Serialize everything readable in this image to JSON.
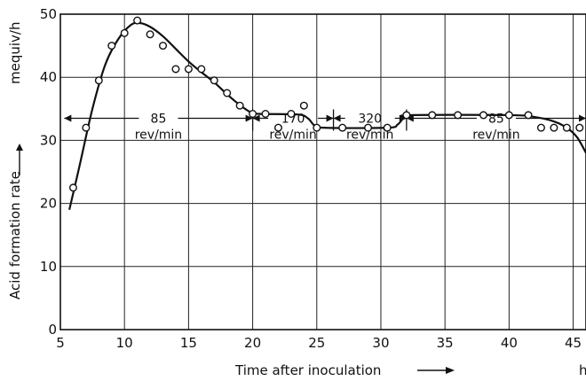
{
  "chart_data": {
    "type": "scatter",
    "xlabel": "Time after inoculation",
    "xunit": "h",
    "ylabel": "Acid formation rate",
    "yunit": "mequiv/h",
    "xlim": [
      5,
      46
    ],
    "ylim": [
      0,
      50
    ],
    "xticks": [
      {
        "value": 5,
        "label": "5"
      },
      {
        "value": 10,
        "label": "10"
      },
      {
        "value": 15,
        "label": "15"
      },
      {
        "value": 20,
        "label": "20"
      },
      {
        "value": 25,
        "label": "25"
      },
      {
        "value": 30,
        "label": "30"
      },
      {
        "value": 35,
        "label": "35"
      },
      {
        "value": 40,
        "label": "40"
      },
      {
        "value": 45,
        "label": "45"
      }
    ],
    "yticks": [
      {
        "value": 0,
        "label": "0"
      },
      {
        "value": 10,
        "label": "10"
      },
      {
        "value": 20,
        "label": "20"
      },
      {
        "value": 30,
        "label": "30"
      },
      {
        "value": 40,
        "label": "40"
      },
      {
        "value": 50,
        "label": "50"
      }
    ],
    "grid": true,
    "points": [
      {
        "x": 6,
        "y": 22.5
      },
      {
        "x": 7,
        "y": 32
      },
      {
        "x": 8,
        "y": 39.5
      },
      {
        "x": 9,
        "y": 45
      },
      {
        "x": 10,
        "y": 47
      },
      {
        "x": 11,
        "y": 49
      },
      {
        "x": 12,
        "y": 46.8
      },
      {
        "x": 13,
        "y": 45
      },
      {
        "x": 14,
        "y": 41.3
      },
      {
        "x": 15,
        "y": 41.3
      },
      {
        "x": 16,
        "y": 41.3
      },
      {
        "x": 17,
        "y": 39.5
      },
      {
        "x": 18,
        "y": 37.5
      },
      {
        "x": 19,
        "y": 35.5
      },
      {
        "x": 20,
        "y": 34.2
      },
      {
        "x": 21,
        "y": 34.2
      },
      {
        "x": 22,
        "y": 32
      },
      {
        "x": 23,
        "y": 34.2
      },
      {
        "x": 24,
        "y": 35.5
      },
      {
        "x": 25,
        "y": 32
      },
      {
        "x": 27,
        "y": 32
      },
      {
        "x": 29,
        "y": 32
      },
      {
        "x": 30.5,
        "y": 32
      },
      {
        "x": 32,
        "y": 34
      },
      {
        "x": 34,
        "y": 34
      },
      {
        "x": 36,
        "y": 34
      },
      {
        "x": 38,
        "y": 34
      },
      {
        "x": 40,
        "y": 34
      },
      {
        "x": 41.5,
        "y": 34
      },
      {
        "x": 42.5,
        "y": 32
      },
      {
        "x": 43.5,
        "y": 32
      },
      {
        "x": 44.5,
        "y": 32
      },
      {
        "x": 45.5,
        "y": 32
      }
    ],
    "curve": [
      [
        5.7,
        19
      ],
      [
        6.5,
        26
      ],
      [
        7.5,
        35
      ],
      [
        8.5,
        42
      ],
      [
        9.5,
        46
      ],
      [
        10.5,
        48.3
      ],
      [
        11.2,
        48.6
      ],
      [
        12,
        48
      ],
      [
        13,
        46.5
      ],
      [
        14,
        44.5
      ],
      [
        15,
        42.5
      ],
      [
        16,
        40.8
      ],
      [
        17,
        39.2
      ],
      [
        18,
        37.3
      ],
      [
        19,
        35.6
      ],
      [
        19.8,
        34.5
      ],
      [
        20.5,
        34.2
      ],
      [
        23.5,
        34.1
      ],
      [
        24.3,
        33.5
      ],
      [
        24.8,
        32.4
      ],
      [
        25.5,
        32
      ],
      [
        30.5,
        32
      ],
      [
        31.3,
        32.5
      ],
      [
        31.8,
        33.6
      ],
      [
        32.3,
        34
      ],
      [
        40,
        34
      ],
      [
        42,
        33.7
      ],
      [
        43.5,
        33
      ],
      [
        44.5,
        32
      ],
      [
        45.3,
        30.5
      ],
      [
        46,
        28
      ]
    ],
    "annotations": [
      {
        "x1": 5.3,
        "x2": 20,
        "y": 33.5,
        "speed": "85",
        "unit": "rev/min"
      },
      {
        "x1": 20,
        "x2": 26.3,
        "y": 33.5,
        "speed": "170",
        "unit": "rev/min"
      },
      {
        "x1": 26.3,
        "x2": 32,
        "y": 33.5,
        "speed": "320",
        "unit": "rev/min"
      },
      {
        "x1": 32,
        "x2": 46,
        "y": 33.5,
        "speed": "85",
        "unit": "rev/min"
      }
    ]
  }
}
